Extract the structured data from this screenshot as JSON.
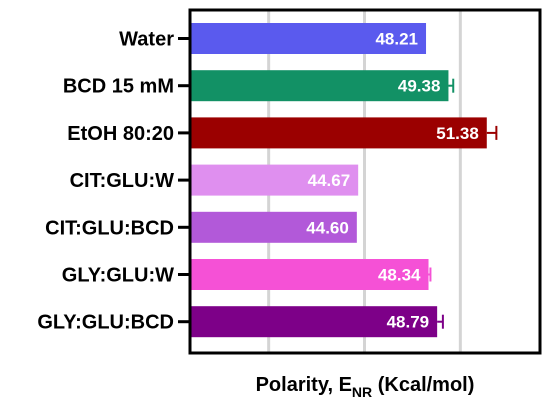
{
  "chart_data": {
    "type": "bar",
    "orientation": "horizontal",
    "categories": [
      "Water",
      "BCD 15 mM",
      "EtOH 80:20",
      "CIT:GLU:W",
      "CIT:GLU:BCD",
      "GLY:GLU:W",
      "GLY:GLU:BCD"
    ],
    "values": [
      48.21,
      49.38,
      51.38,
      44.67,
      44.6,
      48.34,
      48.79
    ],
    "errors": [
      0.0,
      0.25,
      0.5,
      0.0,
      0.0,
      0.1,
      0.3
    ],
    "value_labels": [
      "48.21",
      "49.38",
      "51.38",
      "44.67",
      "44.60",
      "48.34",
      "48.79"
    ],
    "colors": [
      "#5a5aee",
      "#129165",
      "#9b0000",
      "#df8fef",
      "#b259d9",
      "#f551d6",
      "#7d0088"
    ],
    "xlabel_main": "Polarity, E",
    "xlabel_sub": "NR",
    "xlabel_unit": " (Kcal/mol)",
    "xlim": [
      36,
      54
    ],
    "gridlines": [
      40,
      45,
      50
    ],
    "grid_color": "#d4d4d4"
  }
}
